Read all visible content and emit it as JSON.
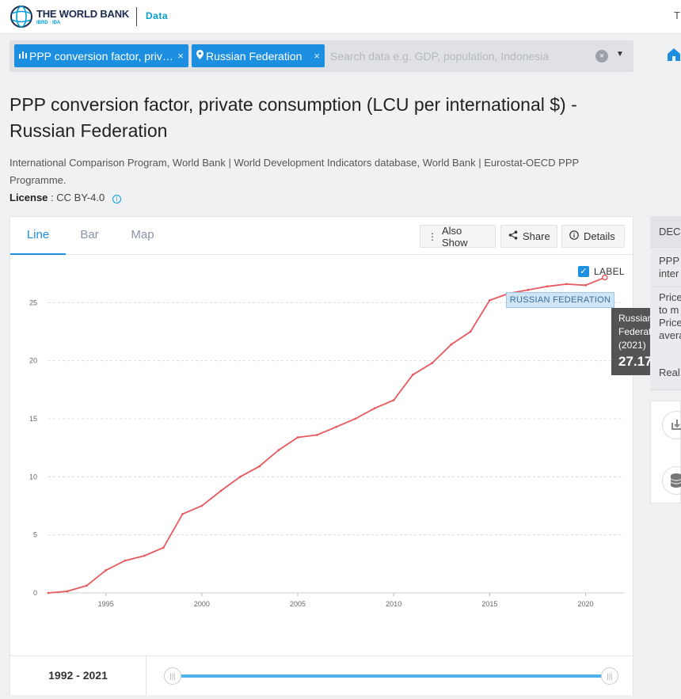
{
  "header": {
    "logo_main": "THE WORLD BANK",
    "logo_sub": "IBRD · IDA",
    "data_link": "Data",
    "top_right_letter": "T"
  },
  "search": {
    "chip_indicator": "PPP conversion factor, private consumption (LCU per international $)",
    "chip_country": "Russian Federation",
    "placeholder": "Search data e.g. GDP, population, Indonesia"
  },
  "page": {
    "title": "PPP conversion factor, private consumption (LCU per international $) - Russian Federation",
    "source": "International Comparison Program, World Bank | World Development Indicators database, World Bank | Eurostat-OECD PPP Programme.",
    "license_label": "License",
    "license_value": ": CC BY-4.0"
  },
  "tabs": [
    "Line",
    "Bar",
    "Map"
  ],
  "tools": {
    "also_show": "Also Show",
    "share": "Share",
    "details": "Details"
  },
  "label_toggle": "LABEL",
  "series_flag": "RUSSIAN FEDERATION",
  "tooltip": {
    "line1": "Russian",
    "line2": "Federation",
    "line3": "(2021)",
    "value": "27.17"
  },
  "range": "1992 - 2021",
  "side_panel": {
    "head": "DEC",
    "row2": "PPP inter",
    "row3": "Price to m Price avera",
    "row4": "Real"
  },
  "colors": {
    "accent": "#1d8fe0",
    "series": "#e8595e"
  },
  "chart_data": {
    "type": "line",
    "title": "",
    "xlabel": "",
    "ylabel": "",
    "x": [
      1992,
      1993,
      1994,
      1995,
      1996,
      1997,
      1998,
      1999,
      2000,
      2001,
      2002,
      2003,
      2004,
      2005,
      2006,
      2007,
      2008,
      2009,
      2010,
      2011,
      2012,
      2013,
      2014,
      2015,
      2016,
      2017,
      2018,
      2019,
      2020,
      2021
    ],
    "series": [
      {
        "name": "Russian Federation",
        "values": [
          0.0,
          0.14,
          0.63,
          1.95,
          2.78,
          3.2,
          3.9,
          6.8,
          7.5,
          8.8,
          10.0,
          10.9,
          12.3,
          13.4,
          13.6,
          14.3,
          15.0,
          15.9,
          16.6,
          18.8,
          19.8,
          21.4,
          22.5,
          25.2,
          25.8,
          26.1,
          26.4,
          26.6,
          26.5,
          27.17
        ]
      }
    ],
    "xlim": [
      1992,
      2022
    ],
    "ylim": [
      0,
      27
    ],
    "x_ticks": [
      1995,
      2000,
      2005,
      2010,
      2015,
      2020
    ],
    "y_ticks": [
      0,
      5,
      10,
      15,
      20,
      25
    ],
    "grid": true,
    "legend": "none"
  }
}
